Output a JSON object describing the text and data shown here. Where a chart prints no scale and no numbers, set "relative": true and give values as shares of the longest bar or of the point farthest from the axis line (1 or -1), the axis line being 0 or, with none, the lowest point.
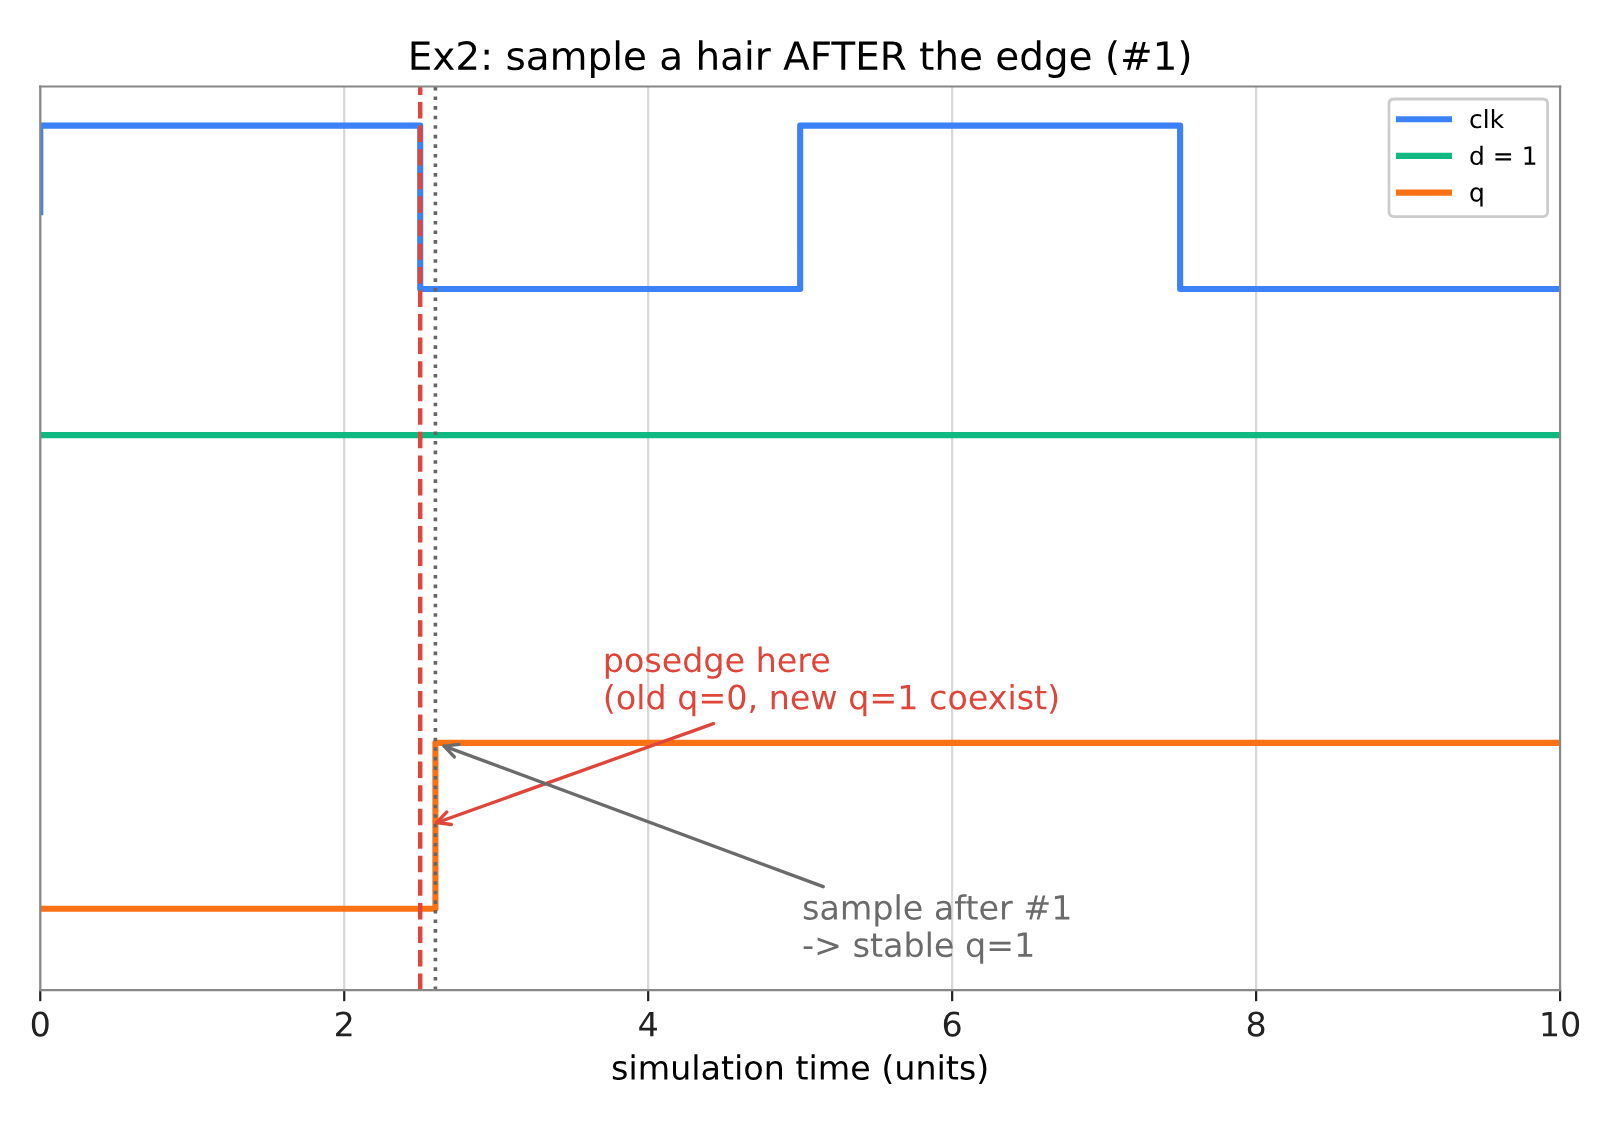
{
  "chart_data": {
    "type": "step",
    "title": "Ex2: sample a hair AFTER the edge (#1)",
    "xlabel": "simulation time (units)",
    "relative": true,
    "series": [
      {
        "name": "clk",
        "color": "#3b82f6",
        "x": [
          0,
          0,
          2.5,
          5,
          7.5,
          10
        ],
        "values": [
          0.9,
          1,
          0.811,
          1,
          0.811,
          0.811
        ]
      },
      {
        "name": "d = 1",
        "color": "#10b981",
        "x": [
          0,
          10
        ],
        "values": [
          0.642,
          0.642
        ]
      },
      {
        "name": "q",
        "color": "#f97316",
        "x": [
          0,
          2.6,
          10
        ],
        "values": [
          0.094,
          0.286,
          0.286
        ]
      }
    ],
    "xlim": [
      0,
      10
    ],
    "xticks": [
      0,
      2,
      4,
      6,
      8,
      10
    ],
    "tick_labels": "x",
    "grid": "x",
    "legend": "top right",
    "ref_lines": [
      {
        "axis": "x",
        "value": 2.5,
        "color": "#e0453a",
        "line_style": "dashed"
      },
      {
        "axis": "x",
        "value": 2.6,
        "color": "#666666",
        "line_style": "dotted"
      }
    ],
    "annotations": [
      {
        "text": "posedge here\n(old q=0, new q=1 coexist)",
        "x": 2.55,
        "y": 0.19
      },
      {
        "text": "sample after #1\n-> stable q=1",
        "x": 2.6,
        "y": 0.286
      }
    ]
  }
}
